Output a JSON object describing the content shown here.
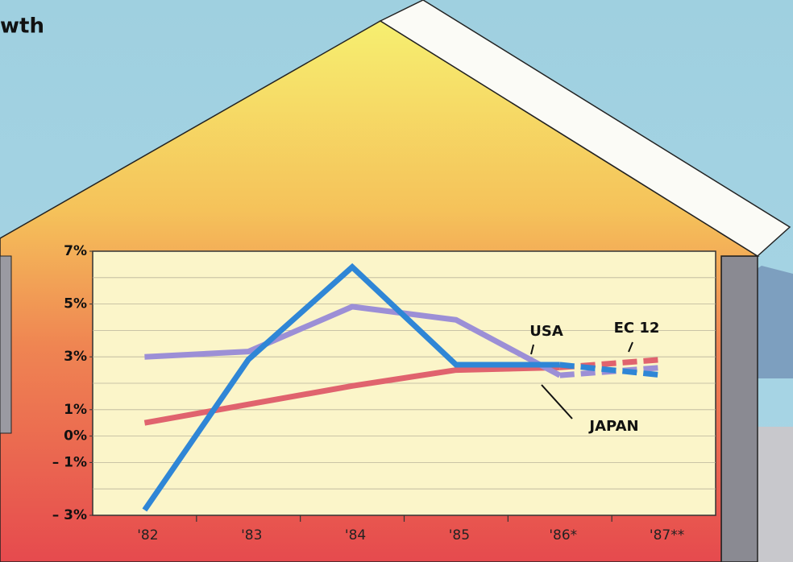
{
  "chart_data": {
    "type": "line",
    "title": "wth",
    "categories": [
      "'82",
      "'83",
      "'84",
      "'85",
      "'86*",
      "'87**"
    ],
    "series": [
      {
        "name": "EC 12",
        "color": "#e0636e",
        "values": [
          0.5,
          1.2,
          1.9,
          2.5,
          2.6,
          2.9
        ]
      },
      {
        "name": "JAPAN",
        "color": "#9c8fd6",
        "values": [
          3.0,
          3.2,
          4.9,
          4.4,
          2.3,
          2.6
        ]
      },
      {
        "name": "USA",
        "color": "#2f86d6",
        "values": [
          -2.8,
          2.9,
          6.4,
          2.7,
          2.7,
          2.3
        ]
      }
    ],
    "ylim": [
      -3,
      7
    ],
    "yticks": [
      {
        "value": 7,
        "label": "7%"
      },
      {
        "value": 5,
        "label": "5%"
      },
      {
        "value": 3,
        "label": "3%"
      },
      {
        "value": 1,
        "label": "1%"
      },
      {
        "value": 0,
        "label": "0%"
      },
      {
        "value": -1,
        "label": "– 1%"
      },
      {
        "value": -3,
        "label": "– 3%"
      }
    ],
    "grid_step": 1,
    "grid": true
  }
}
